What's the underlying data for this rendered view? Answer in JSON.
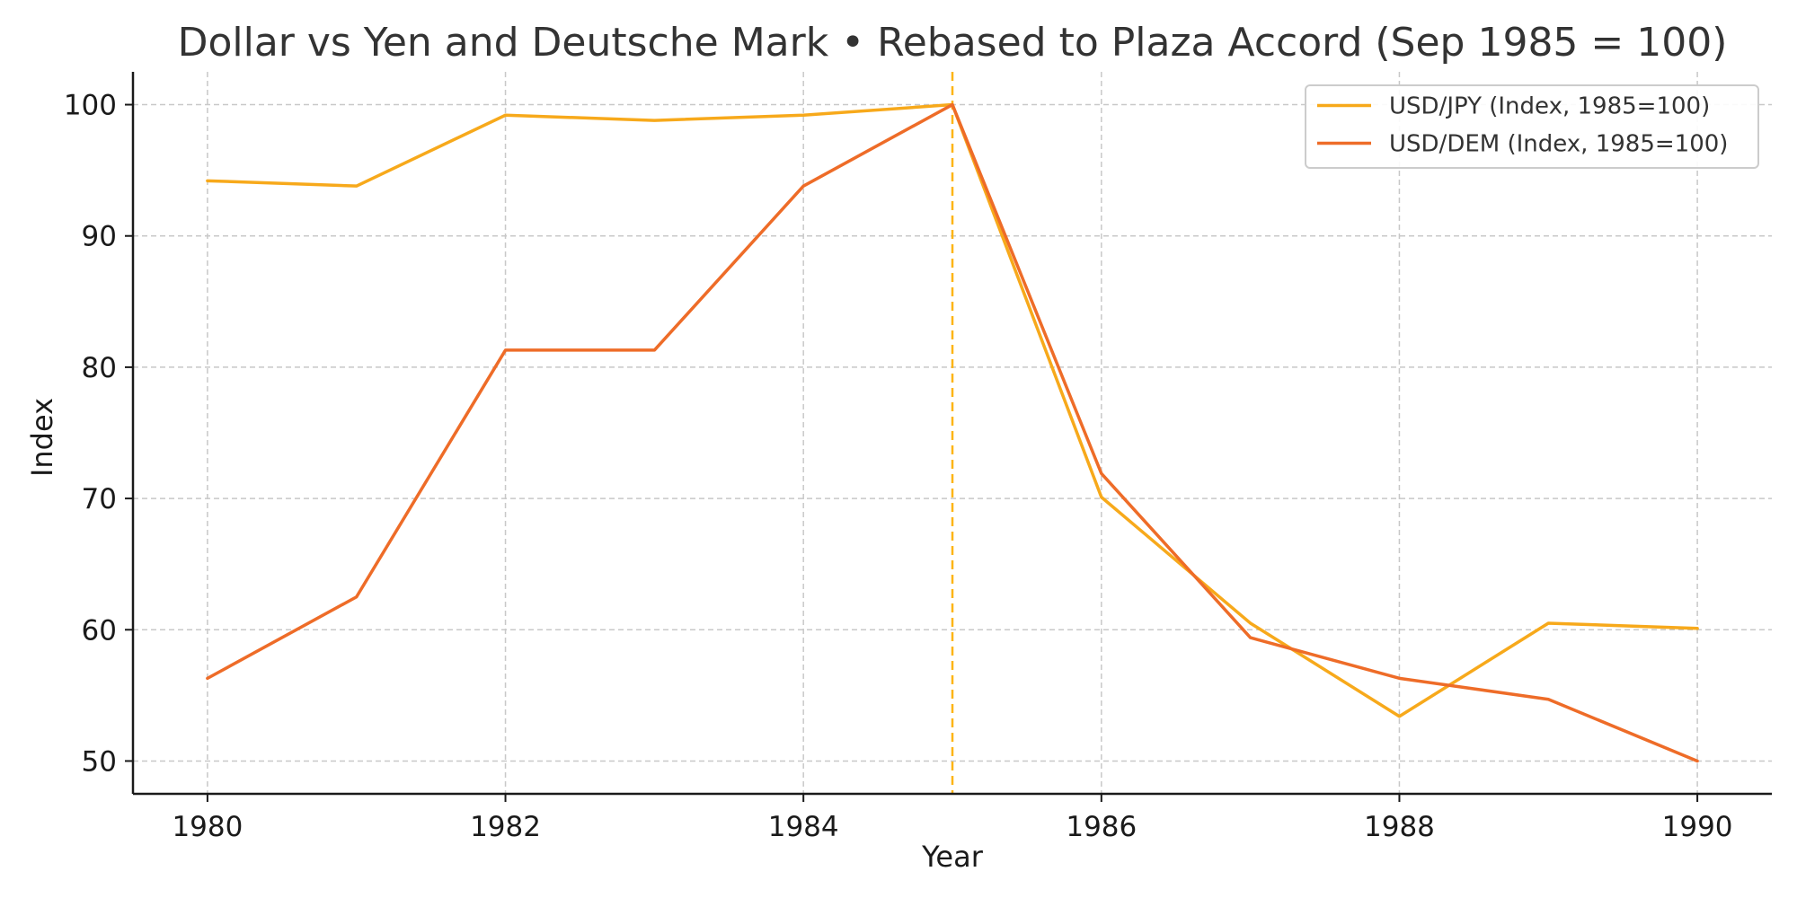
{
  "chart_data": {
    "type": "line",
    "title": "Dollar vs Yen and Deutsche Mark • Rebased to Plaza Accord (Sep 1985 = 100)",
    "xlabel": "Year",
    "ylabel": "Index",
    "xlim": [
      1979.5,
      1990.5
    ],
    "ylim": [
      47.5,
      102.5
    ],
    "x": [
      1980,
      1981,
      1982,
      1983,
      1984,
      1985,
      1986,
      1987,
      1988,
      1989,
      1990
    ],
    "xticks": [
      1980,
      1982,
      1984,
      1986,
      1988,
      1990
    ],
    "yticks": [
      50,
      60,
      70,
      80,
      90,
      100
    ],
    "grid": true,
    "legend_position": "top-right",
    "reference_line": {
      "x": 1985,
      "color": "#FDB515",
      "style": "dashed"
    },
    "series": [
      {
        "name": "USD/JPY (Index, 1985=100)",
        "color": "#F7A91B",
        "values": [
          94.2,
          93.8,
          99.2,
          98.8,
          99.2,
          100.0,
          70.1,
          60.5,
          53.4,
          60.5,
          60.1
        ]
      },
      {
        "name": "USD/DEM (Index, 1985=100)",
        "color": "#EE6C28",
        "values": [
          56.3,
          62.5,
          81.3,
          81.3,
          93.8,
          100.0,
          71.9,
          59.4,
          56.3,
          54.7,
          50.0
        ]
      }
    ]
  }
}
